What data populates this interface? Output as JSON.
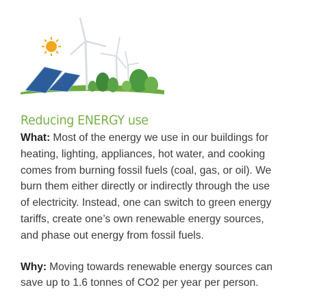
{
  "heading": "Reducing ENERGY use",
  "what": {
    "label": "What:",
    "lines": [
      "Most of the energy we use in our buildings for",
      "heating, lighting, appliances, hot water, and cooking",
      "comes from burning fossil fuels (coal, gas, or oil). We",
      "burn them either directly or indirectly through the use",
      "of electricity. Instead, one can switch to green energy",
      "tariffs, create one’s own renewable energy sources,",
      "and phase out energy from fossil fuels."
    ]
  },
  "why": {
    "label": "Why:",
    "lines": [
      "Moving towards renewable energy sources can",
      "save up to 1.6 tonnes of CO2 per year per person."
    ]
  }
}
